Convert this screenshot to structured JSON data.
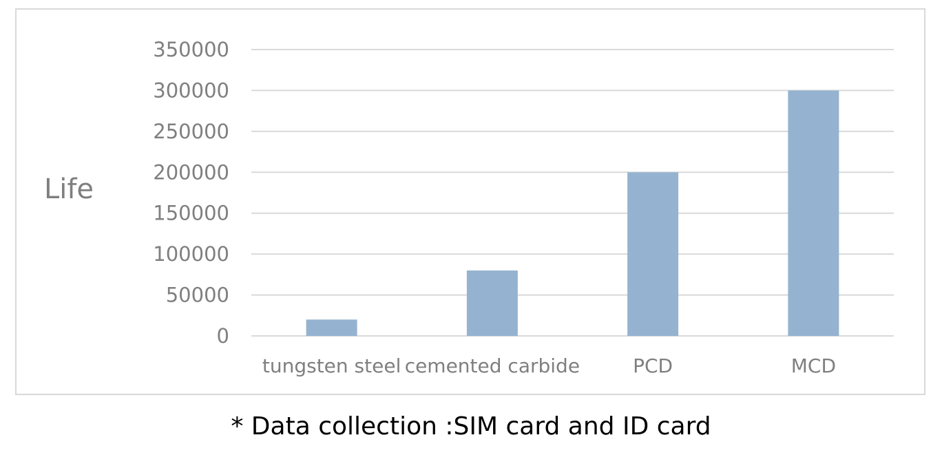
{
  "chart_data": {
    "type": "bar",
    "categories": [
      "tungsten steel",
      "cemented carbide",
      "PCD",
      "MCD"
    ],
    "values": [
      20000,
      80000,
      200000,
      300000
    ],
    "title": "",
    "xlabel": "",
    "ylabel": "Life",
    "ylim": [
      0,
      350000
    ],
    "yticks": [
      "0",
      "50000",
      "100000",
      "150000",
      "200000",
      "250000",
      "300000",
      "350000"
    ],
    "grid": true,
    "legend": "none",
    "bar_color": "#95b3d0",
    "grid_color": "#d9d9d9",
    "text_color": "#7f7f7f"
  },
  "footnote": "* Data collection :SIM card and ID card"
}
